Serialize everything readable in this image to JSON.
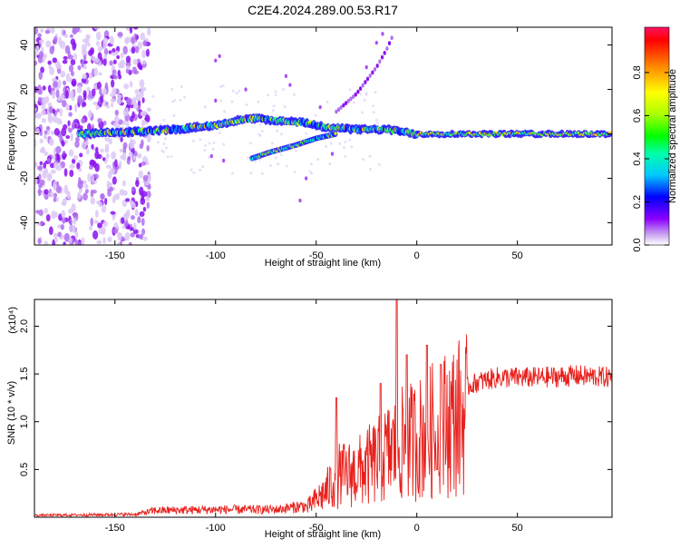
{
  "chart_data": [
    {
      "type": "heatmap",
      "title": "C2E4.2024.289.00.53.R17",
      "xlabel": "Height of straight line (km)",
      "ylabel": "Frequency (Hz)",
      "xlim": [
        -190,
        97
      ],
      "ylim": [
        -50,
        48
      ],
      "xticks": [
        -150,
        -100,
        -50,
        0,
        50
      ],
      "yticks": [
        -40,
        -20,
        0,
        20,
        40
      ],
      "colorbar": {
        "label": "Normalized spectral amplitude",
        "range": [
          0,
          1
        ],
        "ticks": [
          {
            "value": 0.0,
            "label": "0.0"
          },
          {
            "value": 0.2,
            "label": "0.2"
          },
          {
            "value": 0.4,
            "label": "0.4"
          },
          {
            "value": 0.6,
            "label": "0.6"
          },
          {
            "value": 0.8,
            "label": "0.8"
          }
        ],
        "colors": [
          "#ffffff",
          "#c8a0f0",
          "#8c00ff",
          "#0000ff",
          "#00c8ff",
          "#00ffaa",
          "#00ff00",
          "#aaff00",
          "#ffff00",
          "#ff8800",
          "#ff0000"
        ]
      },
      "features": {
        "main_band": [
          [
            -165,
            0
          ],
          [
            -140,
            1
          ],
          [
            -120,
            2
          ],
          [
            -100,
            4
          ],
          [
            -90,
            6
          ],
          [
            -80,
            7
          ],
          [
            -70,
            6
          ],
          [
            -55,
            5
          ],
          [
            -45,
            3
          ],
          [
            -30,
            2
          ],
          [
            -15,
            2
          ],
          [
            0,
            0
          ],
          [
            50,
            0
          ],
          [
            97,
            0
          ]
        ],
        "lower_branch": [
          [
            -82,
            -11
          ],
          [
            -72,
            -8
          ],
          [
            -60,
            -5
          ],
          [
            -50,
            -2
          ],
          [
            -40,
            0
          ]
        ],
        "upper_branch": [
          [
            -40,
            10
          ],
          [
            -30,
            18
          ],
          [
            -20,
            30
          ],
          [
            -15,
            38
          ],
          [
            -12,
            44
          ]
        ]
      }
    },
    {
      "type": "line",
      "xlabel": "Height of straight line (km)",
      "ylabel": "SNR (10 * v/v)",
      "y_multiplier": "(x10⁴)",
      "xlim": [
        -190,
        97
      ],
      "ylim": [
        0,
        2.28
      ],
      "xticks": [
        -150,
        -100,
        -50,
        0,
        50
      ],
      "yticks": [
        {
          "value": 0.5,
          "label": "0.5"
        },
        {
          "value": 1.0,
          "label": "1.0"
        },
        {
          "value": 1.5,
          "label": "1.5"
        },
        {
          "value": 2.0,
          "label": "2.0"
        }
      ],
      "color": "#e8201c",
      "envelope": [
        [
          -190,
          0.02
        ],
        [
          -140,
          0.03
        ],
        [
          -130,
          0.07
        ],
        [
          -100,
          0.08
        ],
        [
          -70,
          0.08
        ],
        [
          -55,
          0.12
        ],
        [
          -45,
          0.35
        ],
        [
          -40,
          0.55
        ],
        [
          -30,
          0.6
        ],
        [
          -20,
          0.75
        ],
        [
          -10,
          0.95
        ],
        [
          0,
          1.05
        ],
        [
          10,
          1.2
        ],
        [
          20,
          1.35
        ],
        [
          30,
          1.45
        ],
        [
          40,
          1.5
        ],
        [
          60,
          1.5
        ],
        [
          80,
          1.52
        ],
        [
          97,
          1.5
        ]
      ],
      "spikes": [
        [
          -40,
          1.25
        ],
        [
          -18,
          1.4
        ],
        [
          -10,
          2.28
        ],
        [
          -5,
          1.7
        ],
        [
          5,
          1.8
        ],
        [
          10,
          0.5
        ],
        [
          12,
          1.6
        ]
      ]
    }
  ]
}
